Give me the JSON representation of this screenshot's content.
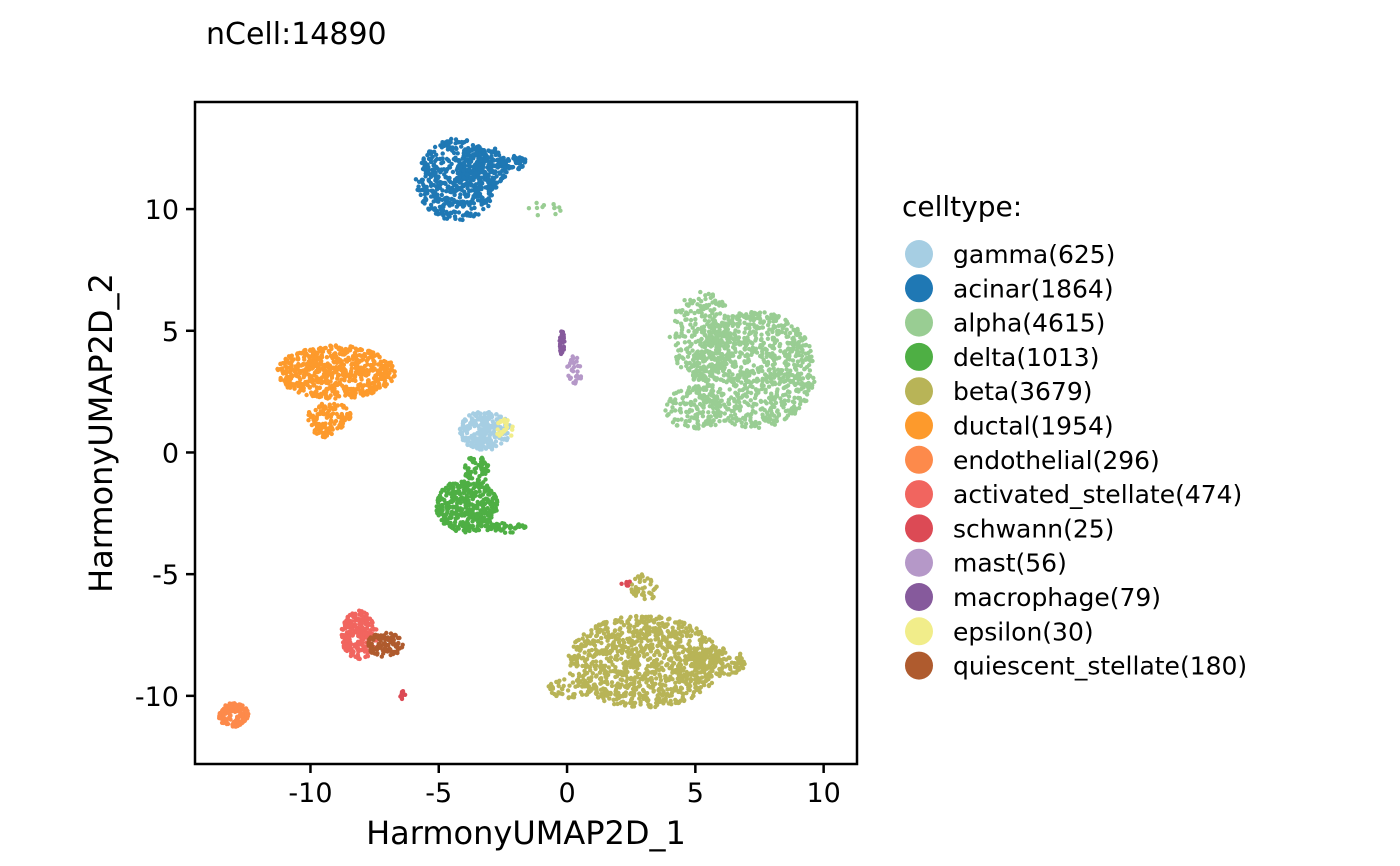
{
  "chart_data": {
    "type": "scatter",
    "subtitle": "nCell:14890",
    "xlabel": "HarmonyUMAP2D_1",
    "ylabel": "HarmonyUMAP2D_2",
    "xlim": [
      -14.5,
      11.3
    ],
    "ylim": [
      -12.8,
      14.4
    ],
    "xticks": [
      -10,
      -5,
      0,
      5,
      10
    ],
    "xtick_labels": [
      "-10",
      "-5",
      "0",
      "5",
      "10"
    ],
    "yticks": [
      -10,
      -5,
      0,
      5,
      10
    ],
    "ytick_labels": [
      "-10",
      "-5",
      "0",
      "5",
      "10"
    ],
    "grid": false,
    "legend_position": "right",
    "legend_title": "celltype:",
    "series": [
      {
        "name": "gamma(625)",
        "color": "#a6cee3",
        "clusters": [
          {
            "cx": -3.2,
            "cy": 0.9,
            "rx": 1.0,
            "ry": 0.8,
            "n": 260
          }
        ]
      },
      {
        "name": "acinar(1864)",
        "color": "#1f78b4",
        "clusters": [
          {
            "cx": -4.3,
            "cy": 11.2,
            "rx": 1.6,
            "ry": 1.7,
            "n": 520
          },
          {
            "cx": -3.3,
            "cy": 11.7,
            "rx": 1.0,
            "ry": 0.9,
            "n": 160
          },
          {
            "cx": -2.2,
            "cy": 11.9,
            "rx": 0.7,
            "ry": 0.3,
            "n": 60
          }
        ]
      },
      {
        "name": "alpha(4615)",
        "color": "#99cd93",
        "clusters": [
          {
            "cx": 7.3,
            "cy": 3.4,
            "rx": 2.4,
            "ry": 2.4,
            "n": 900
          },
          {
            "cx": 5.3,
            "cy": 4.8,
            "rx": 1.3,
            "ry": 1.8,
            "n": 280
          },
          {
            "cx": 5.0,
            "cy": 1.8,
            "rx": 1.2,
            "ry": 0.9,
            "n": 150
          },
          {
            "cx": -1.0,
            "cy": 10.0,
            "rx": 0.8,
            "ry": 0.3,
            "n": 12
          }
        ]
      },
      {
        "name": "delta(1013)",
        "color": "#4eaf44",
        "clusters": [
          {
            "cx": -3.9,
            "cy": -2.2,
            "rx": 1.2,
            "ry": 1.1,
            "n": 380
          },
          {
            "cx": -2.4,
            "cy": -3.1,
            "rx": 0.8,
            "ry": 0.2,
            "n": 50
          },
          {
            "cx": -3.5,
            "cy": -0.7,
            "rx": 0.5,
            "ry": 0.6,
            "n": 60
          }
        ]
      },
      {
        "name": "beta(3679)",
        "color": "#b8b457",
        "clusters": [
          {
            "cx": 3.0,
            "cy": -8.6,
            "rx": 3.0,
            "ry": 1.9,
            "n": 1000
          },
          {
            "cx": 5.8,
            "cy": -8.6,
            "rx": 1.2,
            "ry": 0.6,
            "n": 120
          },
          {
            "cx": 0.2,
            "cy": -9.7,
            "rx": 1.0,
            "ry": 0.4,
            "n": 60
          },
          {
            "cx": 3.0,
            "cy": -5.6,
            "rx": 0.5,
            "ry": 0.6,
            "n": 40
          }
        ]
      },
      {
        "name": "ductal(1954)",
        "color": "#fd9a2c",
        "clusters": [
          {
            "cx": -9.0,
            "cy": 3.3,
            "rx": 2.3,
            "ry": 1.1,
            "n": 650
          },
          {
            "cx": -9.3,
            "cy": 1.5,
            "rx": 0.9,
            "ry": 0.6,
            "n": 90
          },
          {
            "cx": -9.5,
            "cy": 0.9,
            "rx": 0.4,
            "ry": 0.3,
            "n": 40
          }
        ]
      },
      {
        "name": "endothelial(296)",
        "color": "#fd8a4b",
        "clusters": [
          {
            "cx": -13.0,
            "cy": -10.8,
            "rx": 0.6,
            "ry": 0.5,
            "n": 150
          }
        ]
      },
      {
        "name": "activated_stellate(474)",
        "color": "#f1655f",
        "clusters": [
          {
            "cx": -8.1,
            "cy": -7.5,
            "rx": 0.7,
            "ry": 1.0,
            "n": 240
          }
        ]
      },
      {
        "name": "schwann(25)",
        "color": "#dc4a55",
        "clusters": [
          {
            "cx": -6.4,
            "cy": -10.0,
            "rx": 0.1,
            "ry": 0.2,
            "n": 10
          },
          {
            "cx": 2.3,
            "cy": -5.3,
            "rx": 0.2,
            "ry": 0.2,
            "n": 8
          }
        ]
      },
      {
        "name": "mast(56)",
        "color": "#b598c8",
        "clusters": [
          {
            "cx": 0.3,
            "cy": 3.4,
            "rx": 0.3,
            "ry": 0.6,
            "n": 30
          }
        ]
      },
      {
        "name": "macrophage(79)",
        "color": "#865a9c",
        "clusters": [
          {
            "cx": -0.2,
            "cy": 4.5,
            "rx": 0.1,
            "ry": 0.5,
            "n": 40
          }
        ]
      },
      {
        "name": "epsilon(30)",
        "color": "#f1ed8a",
        "clusters": [
          {
            "cx": -2.4,
            "cy": 1.0,
            "rx": 0.5,
            "ry": 0.4,
            "n": 20
          }
        ]
      },
      {
        "name": "quiescent_stellate(180)",
        "color": "#af5b2e",
        "clusters": [
          {
            "cx": -7.1,
            "cy": -7.9,
            "rx": 0.7,
            "ry": 0.5,
            "n": 100
          }
        ]
      }
    ]
  }
}
